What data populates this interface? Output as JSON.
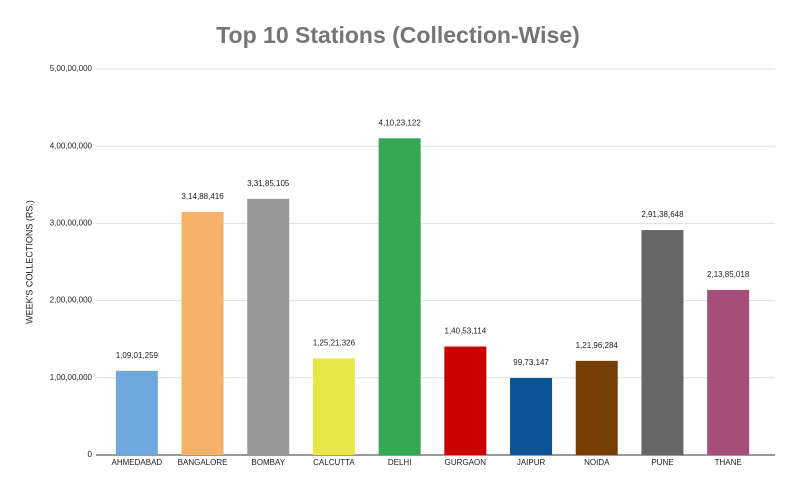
{
  "chart_data": {
    "type": "bar",
    "title": "Top 10 Stations (Collection-Wise)",
    "y_label": "WEEK'S COLLECTIONS (RS.)",
    "categories": [
      "AHMEDABAD",
      "BANGALORE",
      "BOMBAY",
      "CALCUTTA",
      "DELHI",
      "GURGAON",
      "JAIPUR",
      "NOIDA",
      "PUNE",
      "THANE"
    ],
    "values": [
      10901259,
      31488416,
      33185105,
      12521326,
      41023122,
      14053114,
      9973147,
      12196284,
      29138648,
      21385018
    ],
    "value_labels": [
      "1,09,01,259",
      "3,14,88,416",
      "3,31,85,105",
      "1,25,21,326",
      "4,10,23,122",
      "1,40,53,114",
      "99,73,147",
      "1,21,96,284",
      "2,91,38,648",
      "2,13,85,018"
    ],
    "colors": [
      "#6fa8dc",
      "#f6b26b",
      "#999999",
      "#e8e74a",
      "#34a853",
      "#cc0000",
      "#0b5394",
      "#783f04",
      "#666666",
      "#a64d79"
    ],
    "ylim": [
      0,
      50000000
    ],
    "yticks": [
      0,
      {
        "value": 10000000,
        "label": "1,00,00,000"
      },
      {
        "value": 20000000,
        "label": "2,00,00,000"
      },
      {
        "value": 30000000,
        "label": "3,00,00,000"
      },
      {
        "value": 40000000,
        "label": "4,00,00,000"
      },
      {
        "value": 50000000,
        "label": "5,00,00,000"
      }
    ],
    "grid": true
  }
}
